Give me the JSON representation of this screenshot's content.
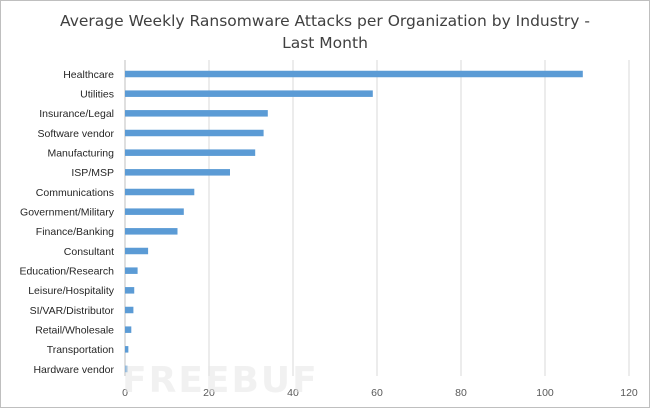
{
  "chart_data": {
    "type": "bar",
    "orientation": "horizontal",
    "title_lines": [
      "Average Weekly Ransomware Attacks per Organization by Industry -",
      "Last Month"
    ],
    "categories": [
      "Healthcare",
      "Utilities",
      "Insurance/Legal",
      "Software vendor",
      "Manufacturing",
      "ISP/MSP",
      "Communications",
      "Government/Military",
      "Finance/Banking",
      "Consultant",
      "Education/Research",
      "Leisure/Hospitality",
      "SI/VAR/Distributor",
      "Retail/Wholesale",
      "Transportation",
      "Hardware vendor"
    ],
    "values": [
      109,
      59,
      34,
      33,
      31,
      25,
      16.5,
      14,
      12.5,
      5.5,
      3,
      2.2,
      2,
      1.5,
      0.8,
      0.6
    ],
    "xlim": [
      0,
      120
    ],
    "xticks": [
      0,
      20,
      40,
      60,
      80,
      100,
      120
    ],
    "grid": true,
    "bar_color": "#5b9bd5",
    "grid_color": "#d9d9d9"
  },
  "watermark": "FREEBUF"
}
